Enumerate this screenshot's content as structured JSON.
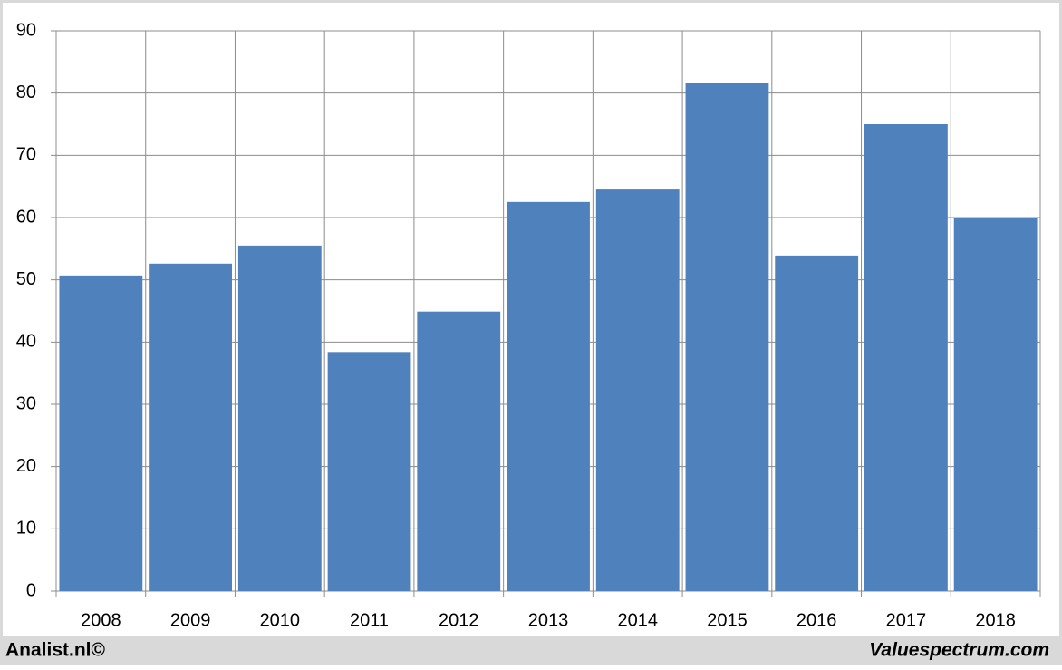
{
  "chart_data": {
    "type": "bar",
    "categories": [
      "2008",
      "2009",
      "2010",
      "2011",
      "2012",
      "2013",
      "2014",
      "2015",
      "2016",
      "2017",
      "2018"
    ],
    "values": [
      50.7,
      52.6,
      55.5,
      38.4,
      44.9,
      62.5,
      64.5,
      81.7,
      53.9,
      75.0,
      59.9
    ],
    "color": "#4f81bd",
    "ylim": [
      0,
      90
    ],
    "yticks": [
      0,
      10,
      20,
      30,
      40,
      50,
      60,
      70,
      80,
      90
    ],
    "grid": true,
    "footer_left": "Analist.nl©",
    "footer_right": "Valuespectrum.com"
  }
}
